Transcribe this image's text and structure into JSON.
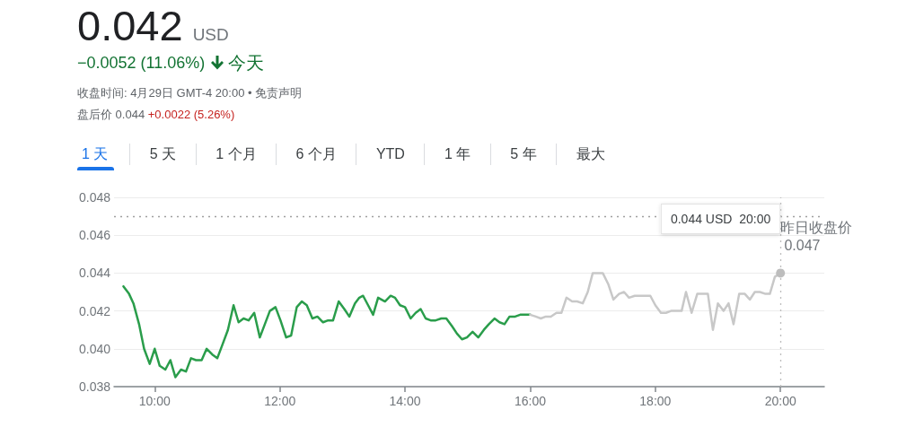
{
  "chart_data": {
    "type": "line",
    "title": "0.042 USD",
    "subtitle": "−0.0052 (11.06%) 今天",
    "annotations": [
      "收盘时间: 4月29日 GMT-4 20:00 • 免责声明",
      "盘后价 0.044 +0.0022 (5.26%)",
      "1 天",
      "5 天",
      "1 个月",
      "6 个月",
      "YTD",
      "1 年",
      "5 年",
      "最大",
      "0.044 USD  20:00"
    ],
    "xlim": [
      9.35,
      20.7
    ],
    "xticks": [
      {
        "value": 10,
        "label": "10:00"
      },
      {
        "value": 12,
        "label": "12:00"
      },
      {
        "value": 14,
        "label": "14:00"
      },
      {
        "value": 16,
        "label": "16:00"
      },
      {
        "value": 18,
        "label": "18:00"
      },
      {
        "value": 20,
        "label": "20:00"
      }
    ],
    "ylim": [
      0.038,
      0.048
    ],
    "yticks": [
      0.038,
      {
        "value": 0.04,
        "label": "0.040"
      },
      0.042,
      0.044,
      0.046,
      0.048
    ],
    "grid": "y",
    "marker": "none",
    "line_style": "solid",
    "series": [
      {
        "color": "#2a9d4b",
        "x": [
          9.5,
          9.59,
          9.66,
          9.75,
          9.83,
          9.92,
          10.0,
          10.08,
          10.17,
          10.25,
          10.33,
          10.42,
          10.5,
          10.58,
          10.66,
          10.75,
          10.83,
          10.92,
          11.0,
          11.08,
          11.17,
          11.26,
          11.34,
          11.42,
          11.5,
          11.59,
          11.68,
          11.76,
          11.84,
          11.93,
          12.01,
          12.1,
          12.18,
          12.27,
          12.35,
          12.43,
          12.52,
          12.6,
          12.69,
          12.77,
          12.85,
          12.94,
          13.03,
          13.11,
          13.2,
          13.27,
          13.33,
          13.41,
          13.49,
          13.57,
          13.68,
          13.77,
          13.84,
          13.92,
          14.0,
          14.09,
          14.17,
          14.25,
          14.33,
          14.41,
          14.49,
          14.58,
          14.66,
          14.75,
          14.83,
          14.91,
          14.99,
          15.08,
          15.17,
          15.26,
          15.34,
          15.43,
          15.51,
          15.59,
          15.67,
          15.76,
          15.84,
          16.0
        ],
        "values": [
          0.0433,
          0.0429,
          0.0424,
          0.0413,
          0.04,
          0.0392,
          0.04,
          0.0391,
          0.0389,
          0.0394,
          0.0385,
          0.0389,
          0.0388,
          0.0395,
          0.0394,
          0.0394,
          0.04,
          0.0397,
          0.0395,
          0.0402,
          0.041,
          0.0423,
          0.0414,
          0.0416,
          0.0415,
          0.0419,
          0.0406,
          0.0413,
          0.042,
          0.0422,
          0.0415,
          0.0406,
          0.0407,
          0.0422,
          0.0425,
          0.0423,
          0.0416,
          0.0417,
          0.0414,
          0.0415,
          0.0415,
          0.0425,
          0.0421,
          0.0417,
          0.0424,
          0.0427,
          0.0428,
          0.0423,
          0.0418,
          0.0427,
          0.0425,
          0.0428,
          0.0427,
          0.0423,
          0.0422,
          0.0416,
          0.0419,
          0.0421,
          0.0416,
          0.0415,
          0.0415,
          0.0416,
          0.0416,
          0.0412,
          0.0408,
          0.0405,
          0.0406,
          0.0409,
          0.0406,
          0.041,
          0.0413,
          0.0416,
          0.0414,
          0.0413,
          0.0417,
          0.0417,
          0.0418,
          0.0418
        ]
      },
      {
        "color": "#c8c8c8",
        "x": [
          16.0,
          16.09,
          16.17,
          16.25,
          16.33,
          16.42,
          16.5,
          16.58,
          16.67,
          16.75,
          16.84,
          16.92,
          17.0,
          17.16,
          17.25,
          17.33,
          17.42,
          17.5,
          17.58,
          17.67,
          17.75,
          17.83,
          17.92,
          18.0,
          18.09,
          18.17,
          18.25,
          18.33,
          18.42,
          18.49,
          18.58,
          18.67,
          18.76,
          18.84,
          18.92,
          19.0,
          19.09,
          19.17,
          19.25,
          19.34,
          19.43,
          19.51,
          19.59,
          19.67,
          19.76,
          19.83,
          19.91,
          20.0
        ],
        "values": [
          0.0418,
          0.0417,
          0.0416,
          0.0417,
          0.0417,
          0.0419,
          0.0419,
          0.0427,
          0.0425,
          0.0425,
          0.0424,
          0.043,
          0.044,
          0.044,
          0.0434,
          0.0426,
          0.0429,
          0.043,
          0.0427,
          0.0428,
          0.0428,
          0.0428,
          0.0428,
          0.0423,
          0.0419,
          0.0419,
          0.042,
          0.042,
          0.042,
          0.043,
          0.0419,
          0.0429,
          0.0429,
          0.0429,
          0.041,
          0.0424,
          0.042,
          0.0424,
          0.0413,
          0.0429,
          0.0429,
          0.0426,
          0.043,
          0.043,
          0.0429,
          0.0429,
          0.0438,
          0.044
        ]
      }
    ],
    "ref_lines": [
      {
        "axis": "y",
        "value": 0.047,
        "label": "昨日收盘价 0.047",
        "color": "#9e9e9e",
        "line_style": "dotted"
      },
      {
        "axis": "x",
        "value": 20,
        "color": "#bdbdbd",
        "line_style": "dotted"
      }
    ]
  }
}
